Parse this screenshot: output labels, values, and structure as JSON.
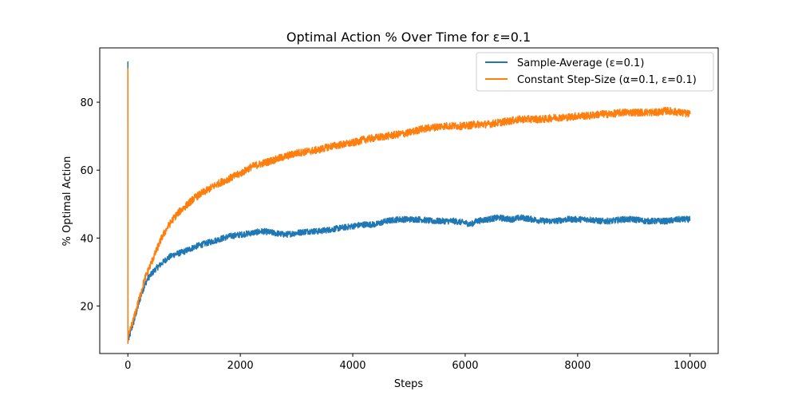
{
  "chart_data": {
    "type": "line",
    "title": "Optimal Action % Over Time for ε=0.1",
    "xlabel": "Steps",
    "ylabel": "% Optimal Action",
    "xlim": [
      -500,
      10500
    ],
    "ylim": [
      6,
      96
    ],
    "xticks": [
      0,
      2000,
      4000,
      6000,
      8000,
      10000
    ],
    "yticks": [
      20,
      40,
      60,
      80
    ],
    "grid": false,
    "legend_position": "top-right",
    "series": [
      {
        "name": "Sample-Average (ε=0.1)",
        "color": "#1f77b4",
        "x": [
          0,
          1,
          2,
          5,
          10,
          30,
          60,
          100,
          150,
          200,
          250,
          300,
          350,
          400,
          500,
          600,
          700,
          800,
          900,
          1000,
          1200,
          1400,
          1600,
          1800,
          2000,
          2200,
          2400,
          2600,
          2800,
          3000,
          3200,
          3400,
          3600,
          3800,
          4000,
          4200,
          4400,
          4600,
          4800,
          5000,
          5200,
          5400,
          5600,
          5800,
          6000,
          6100,
          6200,
          6400,
          6600,
          6800,
          7000,
          7200,
          7400,
          7600,
          7800,
          8000,
          8200,
          8400,
          8600,
          8800,
          9000,
          9200,
          9400,
          9600,
          9800,
          10000
        ],
        "y": [
          92,
          9,
          9.5,
          10,
          10,
          11,
          13,
          15,
          18,
          21,
          24,
          26,
          28,
          29,
          31,
          32.5,
          34,
          35,
          35.5,
          36,
          37.5,
          38.5,
          39.5,
          40.5,
          41,
          41.5,
          42,
          41.5,
          41,
          41.5,
          42,
          42,
          42.5,
          43,
          43.5,
          44,
          44,
          45,
          45.5,
          45.5,
          45.5,
          45,
          45,
          45,
          44.5,
          44,
          45,
          45.5,
          46,
          45.5,
          46,
          45.5,
          45,
          45,
          45.5,
          45.5,
          45.5,
          45,
          45,
          45.5,
          45.5,
          45,
          45,
          45,
          45.5,
          45.5
        ]
      },
      {
        "name": "Constant Step-Size (α=0.1, ε=0.1)",
        "color": "#ff7f0e",
        "x": [
          0,
          1,
          2,
          5,
          10,
          30,
          60,
          100,
          150,
          200,
          250,
          300,
          350,
          400,
          500,
          600,
          700,
          800,
          900,
          1000,
          1200,
          1400,
          1600,
          1800,
          2000,
          2200,
          2400,
          2600,
          2800,
          3000,
          3200,
          3400,
          3600,
          3800,
          4000,
          4200,
          4400,
          4600,
          4800,
          5000,
          5200,
          5400,
          5600,
          5800,
          6000,
          6200,
          6400,
          6600,
          6800,
          7000,
          7200,
          7400,
          7600,
          7800,
          8000,
          8200,
          8400,
          8600,
          8800,
          9000,
          9200,
          9400,
          9600,
          9800,
          10000
        ],
        "y": [
          90,
          9,
          10,
          11,
          11,
          12,
          14,
          16,
          19,
          22,
          25,
          28,
          30,
          32,
          36,
          40,
          43,
          45.5,
          47.5,
          49,
          52,
          54,
          56,
          57.5,
          59,
          61,
          62,
          63,
          64,
          65,
          65.5,
          66,
          67,
          67.5,
          68,
          69,
          69.5,
          70,
          70.5,
          71,
          72,
          72.5,
          73,
          73,
          73,
          73.5,
          73.5,
          74,
          74.5,
          75,
          75,
          75,
          75.5,
          75.5,
          76,
          76,
          76.5,
          76.5,
          77,
          77,
          77,
          77,
          77.5,
          77,
          76.5
        ]
      }
    ]
  }
}
